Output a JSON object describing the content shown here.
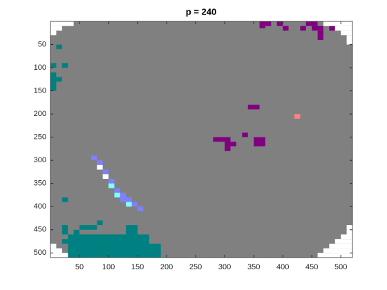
{
  "chart_data": {
    "type": "image",
    "title": "p = 240",
    "xlim": [
      0,
      520
    ],
    "ylim": [
      0,
      510
    ],
    "y_reversed": true,
    "xticks": [
      50,
      100,
      150,
      200,
      250,
      300,
      350,
      400,
      450,
      500
    ],
    "yticks": [
      50,
      100,
      150,
      200,
      250,
      300,
      350,
      400,
      450,
      500
    ],
    "background": "#808080",
    "layers": [
      {
        "color": "#008080",
        "x": [
          10,
          0,
          20,
          0,
          10,
          20,
          20,
          40,
          50,
          60,
          30,
          80,
          70,
          130,
          170,
          20
        ],
        "y": [
          50,
          90,
          90,
          110,
          120,
          380,
          440,
          450,
          440,
          440,
          460,
          430,
          460,
          440,
          480,
          470
        ],
        "w": [
          10,
          10,
          10,
          10,
          10,
          10,
          10,
          10,
          10,
          20,
          140,
          10,
          10,
          20,
          20,
          10
        ],
        "h": [
          10,
          10,
          10,
          40,
          10,
          10,
          20,
          10,
          10,
          10,
          50,
          10,
          10,
          20,
          30,
          10
        ]
      },
      {
        "color": "#800080",
        "x": [
          360,
          390,
          400,
          430,
          440,
          450,
          460,
          480,
          360,
          340,
          330,
          280,
          300,
          300,
          350
        ],
        "y": [
          0,
          0,
          10,
          10,
          0,
          10,
          20,
          10,
          10,
          180,
          240,
          250,
          260,
          270,
          250
        ],
        "w": [
          20,
          10,
          10,
          10,
          20,
          20,
          10,
          10,
          10,
          20,
          10,
          30,
          20,
          10,
          20
        ],
        "h": [
          10,
          10,
          10,
          10,
          10,
          10,
          20,
          10,
          5,
          10,
          10,
          10,
          10,
          10,
          20
        ]
      },
      {
        "color": "#ff8080",
        "x": [
          420
        ],
        "y": [
          200
        ],
        "w": [
          10
        ],
        "h": [
          10
        ]
      },
      {
        "color": "#8080ff",
        "x": [
          70,
          80,
          90,
          100,
          110,
          120,
          130,
          140,
          150
        ],
        "y": [
          290,
          300,
          320,
          340,
          360,
          370,
          380,
          390,
          400
        ],
        "w": [
          10,
          10,
          10,
          10,
          10,
          10,
          10,
          10,
          10
        ],
        "h": [
          10,
          20,
          20,
          20,
          10,
          20,
          10,
          10,
          10
        ]
      },
      {
        "color": "#80ffff",
        "x": [
          100,
          110,
          130
        ],
        "y": [
          350,
          370,
          390
        ],
        "w": [
          10,
          10,
          10
        ],
        "h": [
          10,
          10,
          10
        ]
      },
      {
        "color": "#ffffff",
        "x": [
          80,
          90,
          0,
          0,
          0,
          470,
          490,
          500,
          510,
          0,
          0,
          0,
          510,
          500,
          490,
          480,
          470,
          460
        ],
        "y": [
          310,
          330,
          0,
          10,
          20,
          0,
          10,
          20,
          30,
          480,
          490,
          500,
          440,
          460,
          470,
          480,
          490,
          500
        ],
        "w": [
          10,
          10,
          40,
          20,
          10,
          50,
          30,
          20,
          10,
          10,
          20,
          30,
          10,
          20,
          30,
          40,
          50,
          60
        ],
        "h": [
          10,
          10,
          10,
          10,
          10,
          10,
          10,
          10,
          20,
          10,
          10,
          10,
          20,
          10,
          10,
          10,
          10,
          10
        ]
      }
    ]
  }
}
